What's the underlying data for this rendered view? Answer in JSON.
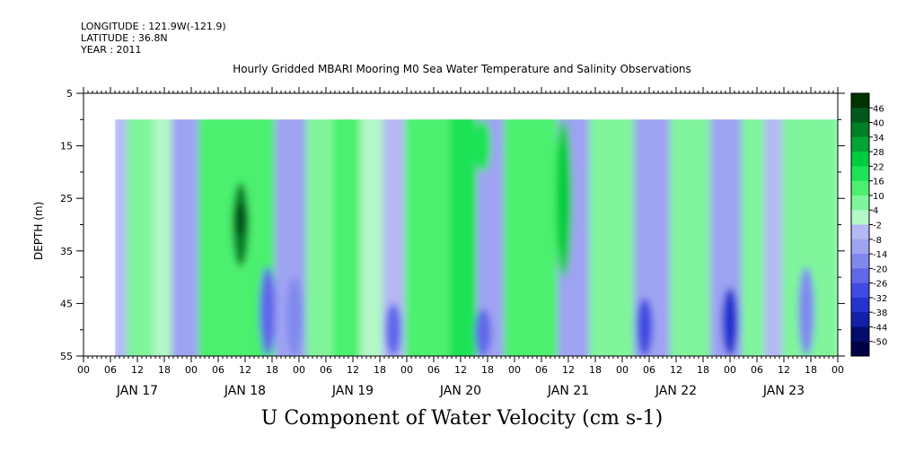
{
  "header": {
    "longitude": "LONGITUDE : 121.9W(-121.9)",
    "latitude": "LATITUDE : 36.8N",
    "year": "YEAR : 2011"
  },
  "chart_data": {
    "type": "heatmap",
    "title": "Hourly Gridded MBARI Mooring M0 Sea Water Temperature and Salinity Observations",
    "bottom_title": "U Component of Water Velocity (cm s-1)",
    "ylabel": "DEPTH (m)",
    "xlabel": "",
    "y_axis": {
      "range": [
        5,
        55
      ],
      "inverted": true,
      "ticks": [
        "5",
        "15",
        "25",
        "35",
        "45",
        "55"
      ]
    },
    "x_axis": {
      "range_hours": [
        0,
        168
      ],
      "hour_labels": [
        "00",
        "06",
        "12",
        "18",
        "00",
        "06",
        "12",
        "18",
        "00",
        "06",
        "12",
        "18",
        "00",
        "06",
        "12",
        "18",
        "00",
        "06",
        "12",
        "18",
        "00",
        "06",
        "12",
        "18",
        "00",
        "06",
        "12",
        "18",
        "00"
      ],
      "day_labels": [
        "JAN 17",
        "JAN 18",
        "JAN 19",
        "JAN 20",
        "JAN 21",
        "JAN 22",
        "JAN 23"
      ]
    },
    "data_extent": {
      "start_hour": 7,
      "depth_top": 10,
      "depth_bottom": 55
    },
    "colorbar": {
      "labels": [
        "46",
        "40",
        "34",
        "28",
        "22",
        "16",
        "10",
        "4",
        "-2",
        "-8",
        "-14",
        "-20",
        "-26",
        "-32",
        "-38",
        "-44",
        "-50"
      ],
      "colors": [
        "#003300",
        "#00591a",
        "#007f26",
        "#00a533",
        "#00cc40",
        "#1ee356",
        "#4cf06e",
        "#80f59b",
        "#b3f7c6",
        "#b4b8f5",
        "#9ea3f2",
        "#8088ee",
        "#6068ea",
        "#3f4be2",
        "#2433cf",
        "#1220a9",
        "#060c6e",
        "#000044"
      ]
    },
    "bands": [
      {
        "start": 7,
        "end": 10,
        "u": -3
      },
      {
        "start": 10,
        "end": 16,
        "u": 10
      },
      {
        "start": 16,
        "end": 20,
        "u": 4
      },
      {
        "start": 20,
        "end": 26,
        "u": -8
      },
      {
        "start": 26,
        "end": 37,
        "u": 16
      },
      {
        "start": 37,
        "end": 43,
        "u": 12
      },
      {
        "start": 43,
        "end": 50,
        "u": -10
      },
      {
        "start": 50,
        "end": 56,
        "u": 6
      },
      {
        "start": 56,
        "end": 62,
        "u": 14
      },
      {
        "start": 62,
        "end": 67,
        "u": 3
      },
      {
        "start": 67,
        "end": 72,
        "u": -6
      },
      {
        "start": 72,
        "end": 82,
        "u": 12
      },
      {
        "start": 82,
        "end": 88,
        "u": 18
      },
      {
        "start": 88,
        "end": 94,
        "u": -10
      },
      {
        "start": 94,
        "end": 101,
        "u": 12
      },
      {
        "start": 101,
        "end": 106,
        "u": 16
      },
      {
        "start": 106,
        "end": 113,
        "u": -8
      },
      {
        "start": 113,
        "end": 123,
        "u": 10
      },
      {
        "start": 123,
        "end": 131,
        "u": -10
      },
      {
        "start": 131,
        "end": 140,
        "u": 8
      },
      {
        "start": 140,
        "end": 147,
        "u": -12
      },
      {
        "start": 147,
        "end": 152,
        "u": 8
      },
      {
        "start": 152,
        "end": 156,
        "u": -4
      },
      {
        "start": 156,
        "end": 160,
        "u": 10
      },
      {
        "start": 160,
        "end": 168,
        "u": 6
      }
    ],
    "features": [
      {
        "hour": 35,
        "depth_from": 22,
        "depth_to": 38,
        "u": 40
      },
      {
        "hour": 35,
        "depth_from": 26,
        "depth_to": 32,
        "u": 46
      },
      {
        "hour": 89,
        "depth_from": 10,
        "depth_to": 20,
        "u": 22
      },
      {
        "hour": 107,
        "depth_from": 10,
        "depth_to": 40,
        "u": 28
      },
      {
        "hour": 41,
        "depth_from": 38,
        "depth_to": 55,
        "u": -20
      },
      {
        "hour": 47,
        "depth_from": 40,
        "depth_to": 55,
        "u": -16
      },
      {
        "hour": 69,
        "depth_from": 45,
        "depth_to": 55,
        "u": -20
      },
      {
        "hour": 89,
        "depth_from": 46,
        "depth_to": 55,
        "u": -22
      },
      {
        "hour": 125,
        "depth_from": 44,
        "depth_to": 55,
        "u": -30
      },
      {
        "hour": 144,
        "depth_from": 42,
        "depth_to": 55,
        "u": -32
      },
      {
        "hour": 161,
        "depth_from": 38,
        "depth_to": 55,
        "u": -18
      }
    ]
  }
}
